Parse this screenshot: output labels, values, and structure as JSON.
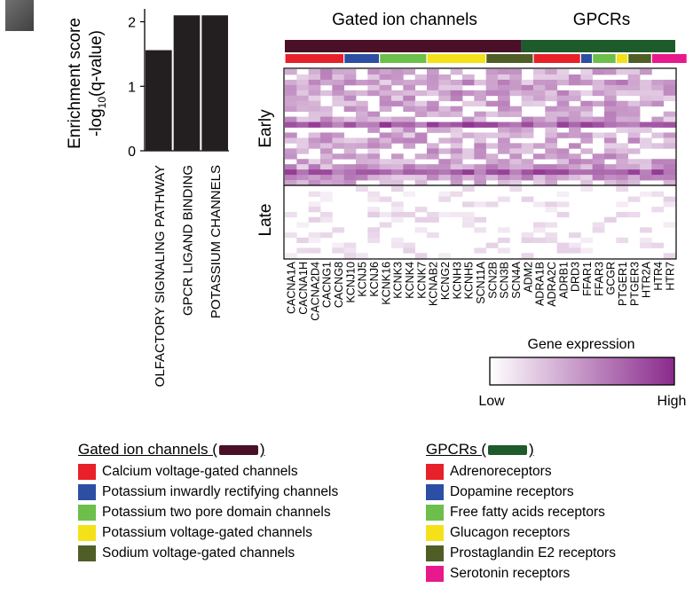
{
  "bar_chart": {
    "type": "bar",
    "ylabel_line1": "Enrichment score",
    "ylabel_line2_prefix": "-log",
    "ylabel_line2_sub": "10",
    "ylabel_line2_suffix": "(q-value)",
    "ylim": [
      0,
      2.2
    ],
    "yticks": [
      "0",
      "1",
      "2"
    ],
    "categories": [
      "OLFACTORY SIGNALING PATHWAY",
      "GPCR LIGAND BINDING",
      "POTASSIUM CHANNELS"
    ],
    "values": [
      1.56,
      2.1,
      2.1
    ],
    "bar_color": "#231f20"
  },
  "heatmap": {
    "type": "heatmap",
    "group_labels": [
      "Gated ion channels",
      "GPCRs"
    ],
    "group_colors": [
      "#4a1028",
      "#1f5a2b"
    ],
    "row_groups": [
      "Early",
      "Late"
    ],
    "genes": [
      "CACNA1A",
      "CACNA1H",
      "CACNA2D4",
      "CACNG1",
      "CACNG8",
      "KCNJ10",
      "KCNJ5",
      "KCNJ6",
      "KCNK16",
      "KCNK3",
      "KCNK4",
      "KCNK7",
      "KCNAB2",
      "KCNG2",
      "KCNH3",
      "KCNH5",
      "SCN11A",
      "SCN2B",
      "SCN3B",
      "SCN4A",
      "ADM2",
      "ADRA1B",
      "ADRA2C",
      "ADRB1",
      "DRD3",
      "FFAR1",
      "FFAR3",
      "GCGR",
      "PTGER1",
      "PTGER3",
      "HTR2A",
      "HTR4",
      "HTR7"
    ],
    "colorbar_title": "Gene expression",
    "colorbar_low": "Low",
    "colorbar_high": "High",
    "low_color": "#ffffff",
    "high_color": "#8a2a8c"
  },
  "legend": {
    "gated": {
      "title": "Gated ion channels (",
      "close": ")",
      "items": [
        {
          "label": "Calcium voltage-gated channels",
          "color": "#e8202a"
        },
        {
          "label": "Potassium inwardly rectifying channels",
          "color": "#2c4fa3"
        },
        {
          "label": "Potassium two pore domain channels",
          "color": "#6cbf4a"
        },
        {
          "label": "Potassium voltage-gated channels",
          "color": "#f5e11a"
        },
        {
          "label": "Sodium voltage-gated channels",
          "color": "#4e5e26"
        }
      ]
    },
    "gpcr": {
      "title": "GPCRs (",
      "close": ")",
      "items": [
        {
          "label": "Adrenoreceptors",
          "color": "#e8202a"
        },
        {
          "label": "Dopamine receptors",
          "color": "#2c4fa3"
        },
        {
          "label": "Free fatty acids receptors",
          "color": "#6cbf4a"
        },
        {
          "label": "Glucagon receptors",
          "color": "#f5e11a"
        },
        {
          "label": "Prostaglandin E2 receptors",
          "color": "#4e5e26"
        },
        {
          "label": "Serotonin receptors",
          "color": "#e8198b"
        }
      ]
    }
  }
}
